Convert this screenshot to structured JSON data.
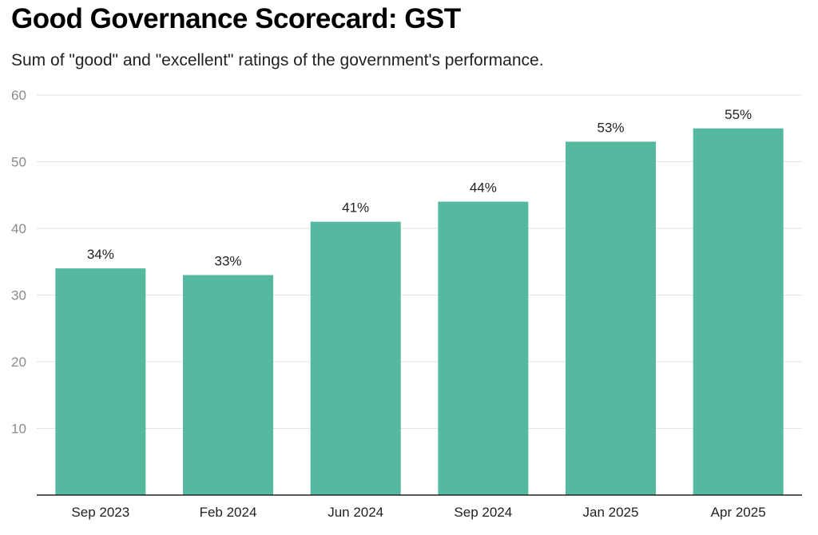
{
  "chart_data": {
    "type": "bar",
    "title": "Good Governance Scorecard: GST",
    "subtitle": "Sum of \"good\" and \"excellent\" ratings of the government's performance.",
    "categories": [
      "Sep 2023",
      "Feb 2024",
      "Jun 2024",
      "Sep 2024",
      "Jan 2025",
      "Apr 2025"
    ],
    "values": [
      34,
      33,
      41,
      44,
      53,
      55
    ],
    "data_labels": [
      "34%",
      "33%",
      "41%",
      "44%",
      "53%",
      "55%"
    ],
    "yticks": [
      "10",
      "20",
      "30",
      "40",
      "50",
      "60"
    ],
    "ytick_values": [
      10,
      20,
      30,
      40,
      50,
      60
    ],
    "ylim": [
      0,
      60
    ],
    "xlabel": "",
    "ylabel": "",
    "grid": true,
    "legend": "none",
    "bar_color": "#55b9a0"
  }
}
